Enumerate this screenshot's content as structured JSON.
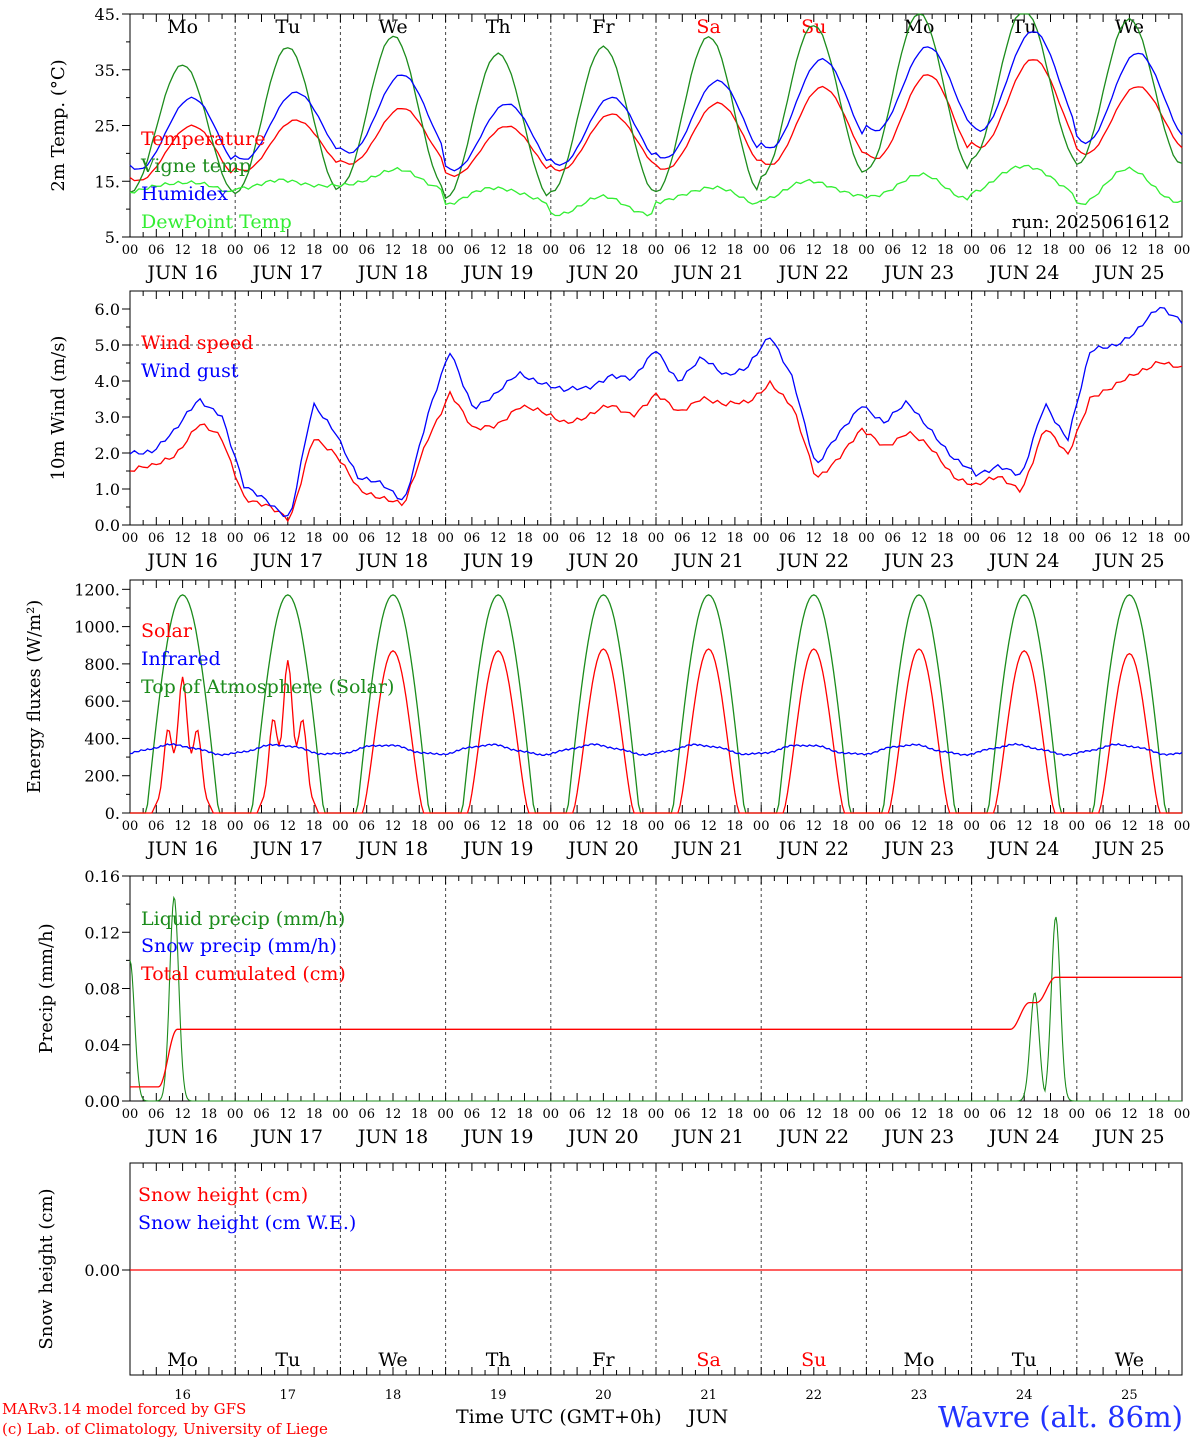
{
  "colors": {
    "red": "#ff0000",
    "green": "#00aa00",
    "darkgreen": "#1c8c1c",
    "blue": "#0000ff",
    "lime": "#33ee33",
    "black": "#000000"
  },
  "footer": {
    "model": "MARv3.14 model forced by GFS",
    "lab": "(c) Lab. of Climatology, University of Liege",
    "time_label": "Time UTC (GMT+0h)",
    "month": "JUN",
    "station": "Wavre (alt. 86m)"
  },
  "chart_data": [
    {
      "type": "line",
      "ylabel": "2m Temp. (°C)",
      "ylim": [
        5,
        45
      ],
      "yticks": [
        "5.",
        "15.",
        "25.",
        "35.",
        "45."
      ],
      "run": "run: 2025061612",
      "days": [
        "16",
        "17",
        "18",
        "19",
        "20",
        "21",
        "22",
        "23",
        "24",
        "25"
      ],
      "weekdays": [
        "Mo",
        "Tu",
        "We",
        "Th",
        "Fr",
        "Sa",
        "Su",
        "Mo",
        "Tu",
        "We"
      ],
      "weekend": [
        5,
        6
      ],
      "hour_labels": [
        "00",
        "06",
        "12",
        "18"
      ],
      "date_label": "JUN",
      "legend": [
        "Temperature",
        "Vigne temp",
        "Humidex",
        "DewPoint Temp"
      ],
      "daily": {
        "Temperature": {
          "min": [
            15,
            17,
            18,
            16,
            17,
            17,
            18,
            19,
            21,
            20
          ],
          "max": [
            25,
            26,
            28,
            25,
            27,
            29,
            32,
            34,
            37,
            32
          ]
        },
        "Vigne temp": {
          "min": [
            13,
            13,
            14,
            12,
            13,
            13,
            16,
            17,
            19,
            18
          ],
          "max": [
            36,
            39,
            41,
            38,
            39,
            41,
            43,
            45,
            46,
            44
          ]
        },
        "Humidex": {
          "min": [
            17,
            19,
            20,
            17,
            18,
            19,
            21,
            24,
            24,
            22
          ],
          "max": [
            30,
            31,
            34,
            29,
            30,
            33,
            37,
            39,
            42,
            38
          ]
        },
        "DewPoint Temp": {
          "min": [
            13,
            14,
            14,
            11,
            9,
            11,
            12,
            12,
            13,
            11
          ],
          "max": [
            15,
            15,
            17,
            14,
            12,
            14,
            15,
            16,
            18,
            17
          ]
        }
      }
    },
    {
      "type": "line",
      "ylabel": "10m Wind (m/s)",
      "ylim": [
        0,
        6.5
      ],
      "yticks": [
        "0.0",
        "1.0",
        "2.0",
        "3.0",
        "4.0",
        "5.0",
        "6.0"
      ],
      "legend": [
        "Wind speed",
        "Wind gust"
      ],
      "reference_line": 5.0,
      "series": [
        {
          "name": "Wind speed",
          "values": [
            1.5,
            1.6,
            2.0,
            2.8,
            2.4,
            0.8,
            0.5,
            0.1,
            2.5,
            1.9,
            1.0,
            0.8,
            0.5,
            2.4,
            3.7,
            2.6,
            2.8,
            3.3,
            3.1,
            2.9,
            3.0,
            3.3,
            3.1,
            3.6,
            3.1,
            3.6,
            3.3,
            3.4,
            4.0,
            3.2,
            1.3,
            1.9,
            2.6,
            2.2,
            2.6,
            2.1,
            1.4,
            1.1,
            1.3,
            1.0,
            2.7,
            1.9,
            3.6,
            3.8,
            4.2,
            4.6,
            4.3
          ]
        },
        {
          "name": "Wind gust",
          "values": [
            2.0,
            2.1,
            2.6,
            3.5,
            3.1,
            1.0,
            0.7,
            0.2,
            3.3,
            2.6,
            1.3,
            1.1,
            0.7,
            3.0,
            4.8,
            3.3,
            3.6,
            4.2,
            4.0,
            3.7,
            3.8,
            4.2,
            4.0,
            4.9,
            4.0,
            4.6,
            4.2,
            4.4,
            5.2,
            4.1,
            1.6,
            2.5,
            3.4,
            2.8,
            3.4,
            2.7,
            1.8,
            1.4,
            1.7,
            1.3,
            3.4,
            2.4,
            4.8,
            5.0,
            5.4,
            6.0,
            5.7
          ]
        }
      ]
    },
    {
      "type": "line",
      "ylabel": "Energy fluxes (W/m²)",
      "ylim": [
        0,
        1250
      ],
      "yticks": [
        "0.",
        "200.",
        "400.",
        "600.",
        "800.",
        "1000.",
        "1200."
      ],
      "legend": [
        "Solar",
        "Infrared",
        "Top of Atmosphere (Solar)"
      ],
      "solar_daily_peak": [
        730,
        820,
        870,
        870,
        880,
        880,
        880,
        880,
        870,
        855
      ],
      "toa_daily_peak": 1170,
      "infrared_mean": 340
    },
    {
      "type": "line",
      "ylabel": "Precip (mm/h)",
      "ylim": [
        0,
        0.16
      ],
      "yticks": [
        "0.00",
        "0.04",
        "0.08",
        "0.12",
        "0.16"
      ],
      "legend": [
        "Liquid precip (mm/h)",
        "Snow precip (mm/h)",
        "Total cumulated (cm)"
      ],
      "total_cumulated_steps": [
        {
          "day": 0.0,
          "value": 0.01
        },
        {
          "day": 0.45,
          "value": 0.051
        },
        {
          "day": 8.55,
          "value": 0.07
        },
        {
          "day": 8.8,
          "value": 0.088
        },
        {
          "day": 10,
          "value": 0.088
        }
      ],
      "liquid_peaks": [
        {
          "day": 0.0,
          "value": 0.1
        },
        {
          "day": 0.42,
          "value": 0.145
        },
        {
          "day": 8.6,
          "value": 0.077
        },
        {
          "day": 8.8,
          "value": 0.131
        }
      ]
    },
    {
      "type": "line",
      "ylabel": "Snow height (cm)",
      "ytick": "0.00",
      "legend": [
        "Snow height (cm)",
        "Snow height (cm W.E.)"
      ],
      "value": 0.0
    }
  ]
}
